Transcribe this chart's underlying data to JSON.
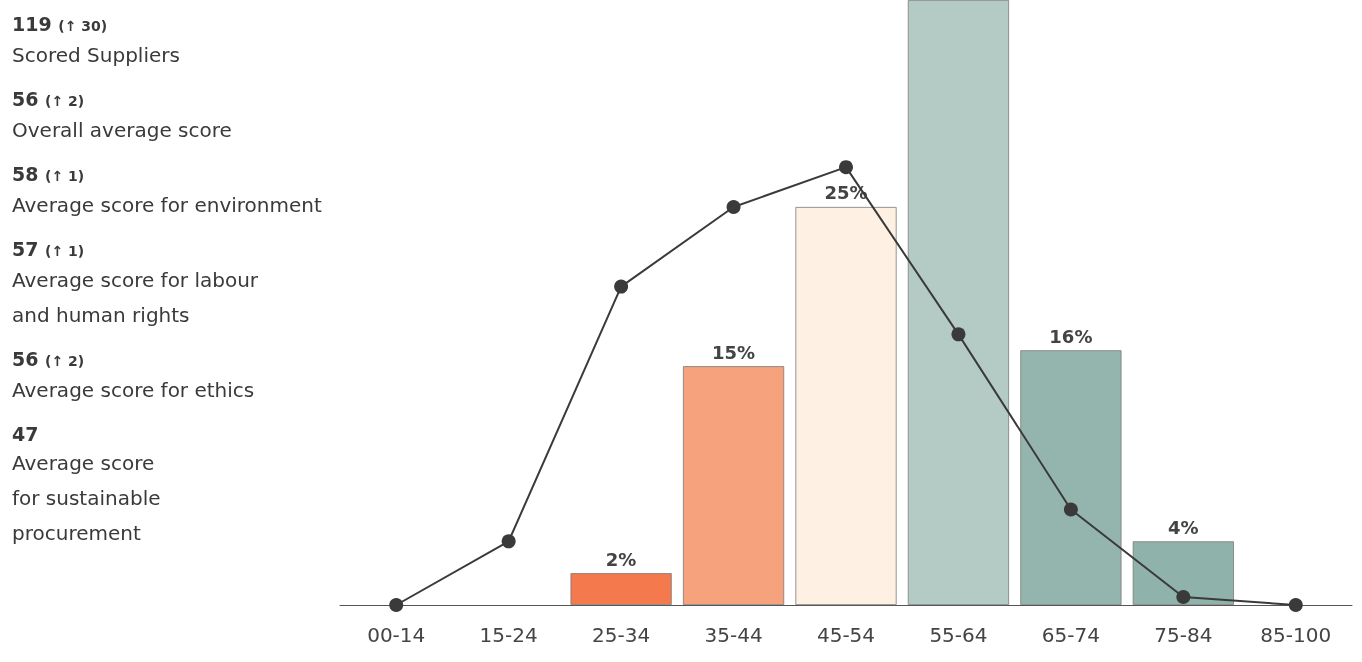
{
  "chart_data": [
    {
      "type": "other",
      "annotations": [
        "119 (↑ 30)",
        "Scored Suppliers",
        "56 (↑ 2)",
        "Overall average score",
        "58 (↑ 1)",
        "Average score for environment",
        "57 (↑ 1)",
        "Average score for labour\nand human rights",
        "56 (↑ 2)",
        "Average score for ethics",
        "47",
        "Average score\nfor sustainable\nprocurement"
      ]
    },
    {
      "type": "bar",
      "categories": [
        "00-14",
        "15-24",
        "25-34",
        "35-44",
        "45-54",
        "55-64",
        "65-74",
        "75-84",
        "85-100"
      ],
      "ylim": [
        0,
        38
      ],
      "tick_labels": "x",
      "grid": false,
      "marker": "circle",
      "line_style": "solid",
      "series": [
        {
          "type": "bar",
          "colors": [
            "#f47a4e",
            "#f47a4e",
            "#f47a4e",
            "#f6a27c",
            "#fef1e3",
            "#b4cbc5",
            "#94b5ad",
            "#8fb2aa",
            "#8fb2aa"
          ],
          "values": [
            null,
            null,
            2,
            15,
            25,
            38,
            16,
            4,
            null
          ],
          "value_labels": [
            null,
            null,
            "2%",
            "15%",
            "25%",
            null,
            "16%",
            "4%",
            null
          ]
        },
        {
          "type": "line",
          "color": "#3a3a3a",
          "values": [
            0,
            4,
            20,
            25,
            27.5,
            17,
            6,
            0.5,
            0
          ]
        }
      ]
    }
  ]
}
